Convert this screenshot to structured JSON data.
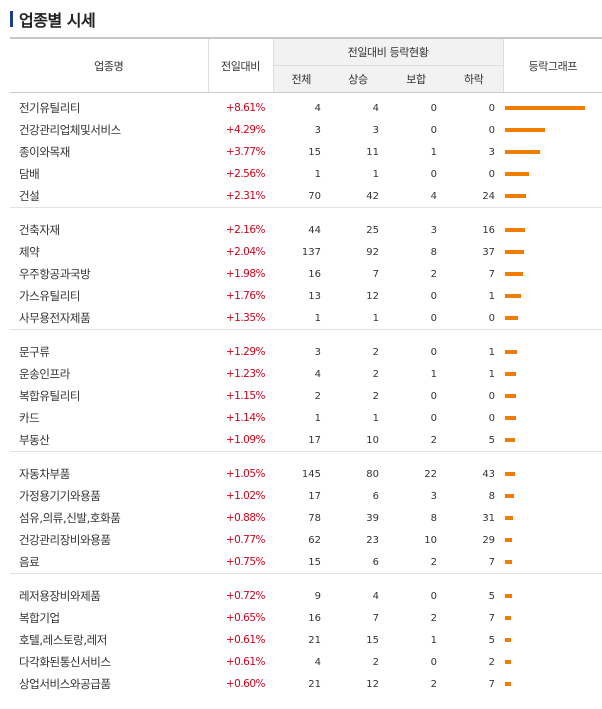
{
  "title": "업종별 시세",
  "header": {
    "name": "업종명",
    "compare": "전일대비",
    "group": "전일대비 등락현황",
    "total": "전체",
    "up": "상승",
    "hold": "보합",
    "down": "하락",
    "graph": "등락그래프"
  },
  "colors": {
    "accent": "#f07d00",
    "rise": "#d0021b",
    "title_bar": "#1a3f8f"
  },
  "rows": [
    {
      "name": "전기유틸리티",
      "chg": "+8.61%",
      "total": "4",
      "up": "4",
      "hold": "0",
      "down": "0",
      "pct": 8.61
    },
    {
      "name": "건강관리업체및서비스",
      "chg": "+4.29%",
      "total": "3",
      "up": "3",
      "hold": "0",
      "down": "0",
      "pct": 4.29
    },
    {
      "name": "종이와목재",
      "chg": "+3.77%",
      "total": "15",
      "up": "11",
      "hold": "1",
      "down": "3",
      "pct": 3.77
    },
    {
      "name": "담배",
      "chg": "+2.56%",
      "total": "1",
      "up": "1",
      "hold": "0",
      "down": "0",
      "pct": 2.56
    },
    {
      "name": "건설",
      "chg": "+2.31%",
      "total": "70",
      "up": "42",
      "hold": "4",
      "down": "24",
      "pct": 2.31
    },
    {
      "name": "건축자재",
      "chg": "+2.16%",
      "total": "44",
      "up": "25",
      "hold": "3",
      "down": "16",
      "pct": 2.16
    },
    {
      "name": "제약",
      "chg": "+2.04%",
      "total": "137",
      "up": "92",
      "hold": "8",
      "down": "37",
      "pct": 2.04
    },
    {
      "name": "우주항공과국방",
      "chg": "+1.98%",
      "total": "16",
      "up": "7",
      "hold": "2",
      "down": "7",
      "pct": 1.98
    },
    {
      "name": "가스유틸리티",
      "chg": "+1.76%",
      "total": "13",
      "up": "12",
      "hold": "0",
      "down": "1",
      "pct": 1.76
    },
    {
      "name": "사무용전자제품",
      "chg": "+1.35%",
      "total": "1",
      "up": "1",
      "hold": "0",
      "down": "0",
      "pct": 1.35
    },
    {
      "name": "문구류",
      "chg": "+1.29%",
      "total": "3",
      "up": "2",
      "hold": "0",
      "down": "1",
      "pct": 1.29
    },
    {
      "name": "운송인프라",
      "chg": "+1.23%",
      "total": "4",
      "up": "2",
      "hold": "1",
      "down": "1",
      "pct": 1.23
    },
    {
      "name": "복합유틸리티",
      "chg": "+1.15%",
      "total": "2",
      "up": "2",
      "hold": "0",
      "down": "0",
      "pct": 1.15
    },
    {
      "name": "카드",
      "chg": "+1.14%",
      "total": "1",
      "up": "1",
      "hold": "0",
      "down": "0",
      "pct": 1.14
    },
    {
      "name": "부동산",
      "chg": "+1.09%",
      "total": "17",
      "up": "10",
      "hold": "2",
      "down": "5",
      "pct": 1.09
    },
    {
      "name": "자동차부품",
      "chg": "+1.05%",
      "total": "145",
      "up": "80",
      "hold": "22",
      "down": "43",
      "pct": 1.05
    },
    {
      "name": "가정용기기와용품",
      "chg": "+1.02%",
      "total": "17",
      "up": "6",
      "hold": "3",
      "down": "8",
      "pct": 1.02
    },
    {
      "name": "섬유,의류,신발,호화품",
      "chg": "+0.88%",
      "total": "78",
      "up": "39",
      "hold": "8",
      "down": "31",
      "pct": 0.88
    },
    {
      "name": "건강관리장비와용품",
      "chg": "+0.77%",
      "total": "62",
      "up": "23",
      "hold": "10",
      "down": "29",
      "pct": 0.77
    },
    {
      "name": "음료",
      "chg": "+0.75%",
      "total": "15",
      "up": "6",
      "hold": "2",
      "down": "7",
      "pct": 0.75
    },
    {
      "name": "레저용장비와제품",
      "chg": "+0.72%",
      "total": "9",
      "up": "4",
      "hold": "0",
      "down": "5",
      "pct": 0.72
    },
    {
      "name": "복합기업",
      "chg": "+0.65%",
      "total": "16",
      "up": "7",
      "hold": "2",
      "down": "7",
      "pct": 0.65
    },
    {
      "name": "호텔,레스토랑,레저",
      "chg": "+0.61%",
      "total": "21",
      "up": "15",
      "hold": "1",
      "down": "5",
      "pct": 0.61
    },
    {
      "name": "다각화된통신서비스",
      "chg": "+0.61%",
      "total": "4",
      "up": "2",
      "hold": "0",
      "down": "2",
      "pct": 0.61
    },
    {
      "name": "상업서비스와공급품",
      "chg": "+0.60%",
      "total": "21",
      "up": "12",
      "hold": "2",
      "down": "7",
      "pct": 0.6
    }
  ]
}
